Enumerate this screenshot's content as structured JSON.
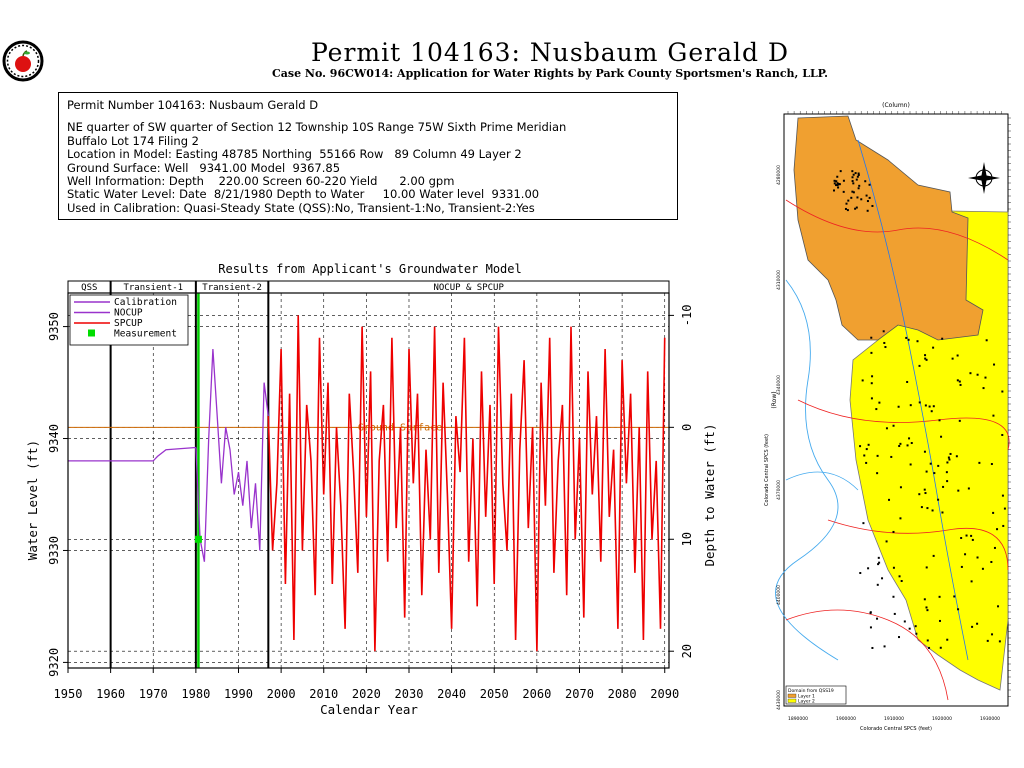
{
  "header": {
    "title": "Permit 104163:  Nusbaum Gerald D",
    "subtitle": "Case No. 96CW014: Application for Water Rights by Park County Sportsmen's Ranch, LLP."
  },
  "info": {
    "heading": "Permit Number 104163: Nusbaum Gerald D",
    "lines": [
      "NE quarter of SW quarter of Section 12 Township 10S Range 75W Sixth Prime Meridian",
      "Buffalo Lot 174 Filing 2",
      "Location in Model: Easting 48785 Northing  55166 Row   89 Column 49 Layer 2",
      "Ground Surface: Well   9341.00 Model  9367.85",
      "Well Information: Depth    220.00 Screen 60-220 Yield      2.00 gpm",
      "Static Water Level: Date  8/21/1980 Depth to Water     10.00 Water level  9331.00",
      "Used in Calibration: Quasi-Steady State (QSS):No, Transient-1:No, Transient-2:Yes"
    ]
  },
  "chart_data": {
    "type": "line",
    "title": "Results from Applicant's Groundwater Model",
    "xlabel": "Calendar Year",
    "ylabel": "Water Level (ft)",
    "y2label": "Depth to Water (ft)",
    "xlim": [
      1950,
      2091
    ],
    "ylim": [
      9319.5,
      9353
    ],
    "x_ticks": [
      1950,
      1960,
      1970,
      1980,
      1990,
      2000,
      2010,
      2020,
      2030,
      2040,
      2050,
      2060,
      2070,
      2080,
      2090
    ],
    "y_ticks": [
      9320,
      9330,
      9340,
      9350
    ],
    "y2_ticks": [
      -10,
      0,
      10,
      20
    ],
    "ground_surface": 9341,
    "ground_label": "Ground Surface",
    "grid": true,
    "periods": [
      {
        "label": "QSS",
        "start": 1950,
        "end": 1960
      },
      {
        "label": "Transient-1",
        "start": 1960,
        "end": 1980
      },
      {
        "label": "Transient-2",
        "start": 1980,
        "end": 1997
      },
      {
        "label": "NOCUP & SPCUP",
        "start": 1997,
        "end": 2091
      }
    ],
    "legend": [
      "Calibration",
      "NOCUP",
      "SPCUP",
      "Measurement"
    ],
    "legend_position": "top-left",
    "colors": {
      "calibration": "#9933cc",
      "nocup": "#9933cc",
      "spcup": "#ee0000",
      "measurement": "#00dd00",
      "ground": "#cc6600",
      "transient_marker": "#00cc00"
    },
    "series": [
      {
        "name": "Calibration",
        "values": [
          [
            1950,
            9338
          ],
          [
            1970,
            9338
          ],
          [
            1971,
            9338.4
          ],
          [
            1973,
            9339
          ],
          [
            1980,
            9339.2
          ]
        ]
      },
      {
        "name": "NOCUP",
        "values": [
          [
            1980,
            9339.2
          ],
          [
            1981,
            9331
          ],
          [
            1982,
            9329
          ],
          [
            1983,
            9340
          ],
          [
            1984,
            9348
          ],
          [
            1985,
            9342
          ],
          [
            1986,
            9336
          ],
          [
            1987,
            9341
          ],
          [
            1988,
            9339
          ],
          [
            1989,
            9335
          ],
          [
            1990,
            9337
          ],
          [
            1991,
            9334
          ],
          [
            1992,
            9338
          ],
          [
            1993,
            9332
          ],
          [
            1994,
            9336
          ],
          [
            1995,
            9330
          ],
          [
            1996,
            9345
          ],
          [
            1997,
            9342
          ]
        ]
      },
      {
        "name": "SPCUP",
        "values": [
          [
            1997,
            9342
          ],
          [
            1998,
            9330
          ],
          [
            1999,
            9336
          ],
          [
            2000,
            9348
          ],
          [
            2001,
            9327
          ],
          [
            2002,
            9344
          ],
          [
            2003,
            9322
          ],
          [
            2004,
            9351
          ],
          [
            2005,
            9330
          ],
          [
            2006,
            9343
          ],
          [
            2007,
            9338
          ],
          [
            2008,
            9326
          ],
          [
            2009,
            9349
          ],
          [
            2010,
            9335
          ],
          [
            2011,
            9345
          ],
          [
            2012,
            9327
          ],
          [
            2013,
            9341
          ],
          [
            2014,
            9334
          ],
          [
            2015,
            9323
          ],
          [
            2016,
            9344
          ],
          [
            2017,
            9337
          ],
          [
            2018,
            9328
          ],
          [
            2019,
            9350
          ],
          [
            2020,
            9333
          ],
          [
            2021,
            9346
          ],
          [
            2022,
            9321
          ],
          [
            2023,
            9338
          ],
          [
            2024,
            9343
          ],
          [
            2025,
            9329
          ],
          [
            2026,
            9349
          ],
          [
            2027,
            9332
          ],
          [
            2028,
            9341
          ],
          [
            2029,
            9324
          ],
          [
            2030,
            9348
          ],
          [
            2031,
            9336
          ],
          [
            2032,
            9344
          ],
          [
            2033,
            9326
          ],
          [
            2034,
            9339
          ],
          [
            2035,
            9331
          ],
          [
            2036,
            9350
          ],
          [
            2037,
            9328
          ],
          [
            2038,
            9345
          ],
          [
            2039,
            9335
          ],
          [
            2040,
            9323
          ],
          [
            2041,
            9342
          ],
          [
            2042,
            9337
          ],
          [
            2043,
            9349
          ],
          [
            2044,
            9329
          ],
          [
            2045,
            9340
          ],
          [
            2046,
            9325
          ],
          [
            2047,
            9346
          ],
          [
            2048,
            9333
          ],
          [
            2049,
            9343
          ],
          [
            2050,
            9327
          ],
          [
            2051,
            9350
          ],
          [
            2052,
            9336
          ],
          [
            2053,
            9330
          ],
          [
            2054,
            9344
          ],
          [
            2055,
            9322
          ],
          [
            2056,
            9339
          ],
          [
            2057,
            9347
          ],
          [
            2058,
            9332
          ],
          [
            2059,
            9341
          ],
          [
            2060,
            9321
          ],
          [
            2061,
            9345
          ],
          [
            2062,
            9334
          ],
          [
            2063,
            9349
          ],
          [
            2064,
            9328
          ],
          [
            2065,
            9338
          ],
          [
            2066,
            9343
          ],
          [
            2067,
            9326
          ],
          [
            2068,
            9350
          ],
          [
            2069,
            9331
          ],
          [
            2070,
            9340
          ],
          [
            2071,
            9324
          ],
          [
            2072,
            9346
          ],
          [
            2073,
            9335
          ],
          [
            2074,
            9342
          ],
          [
            2075,
            9329
          ],
          [
            2076,
            9348
          ],
          [
            2077,
            9333
          ],
          [
            2078,
            9339
          ],
          [
            2079,
            9323
          ],
          [
            2080,
            9347
          ],
          [
            2081,
            9336
          ],
          [
            2082,
            9344
          ],
          [
            2083,
            9328
          ],
          [
            2084,
            9341
          ],
          [
            2085,
            9322
          ],
          [
            2086,
            9346
          ],
          [
            2087,
            9331
          ],
          [
            2088,
            9338
          ],
          [
            2089,
            9323
          ],
          [
            2090,
            9349
          ]
        ]
      }
    ],
    "measurements": [
      [
        1980.6,
        9331
      ]
    ]
  },
  "map": {
    "top_label": "(Column)",
    "left_label": "(Row)",
    "y_axis_label": "Colorado Central SPCS (feet)",
    "x_axis_label": "Colorado Central SPCS (feet)",
    "x_ticks": [
      "1890000",
      "1900000",
      "1910000",
      "1920000",
      "1930000"
    ],
    "y_ticks": [
      "4430000",
      "4400000",
      "4370000",
      "4340000",
      "4310000",
      "4280000"
    ],
    "legend_title": "Domain from QSS19",
    "legend_items": [
      "Layer 1",
      "Layer 2"
    ],
    "colors": {
      "layer1": "#f0a030",
      "layer2": "#ffff00"
    }
  }
}
